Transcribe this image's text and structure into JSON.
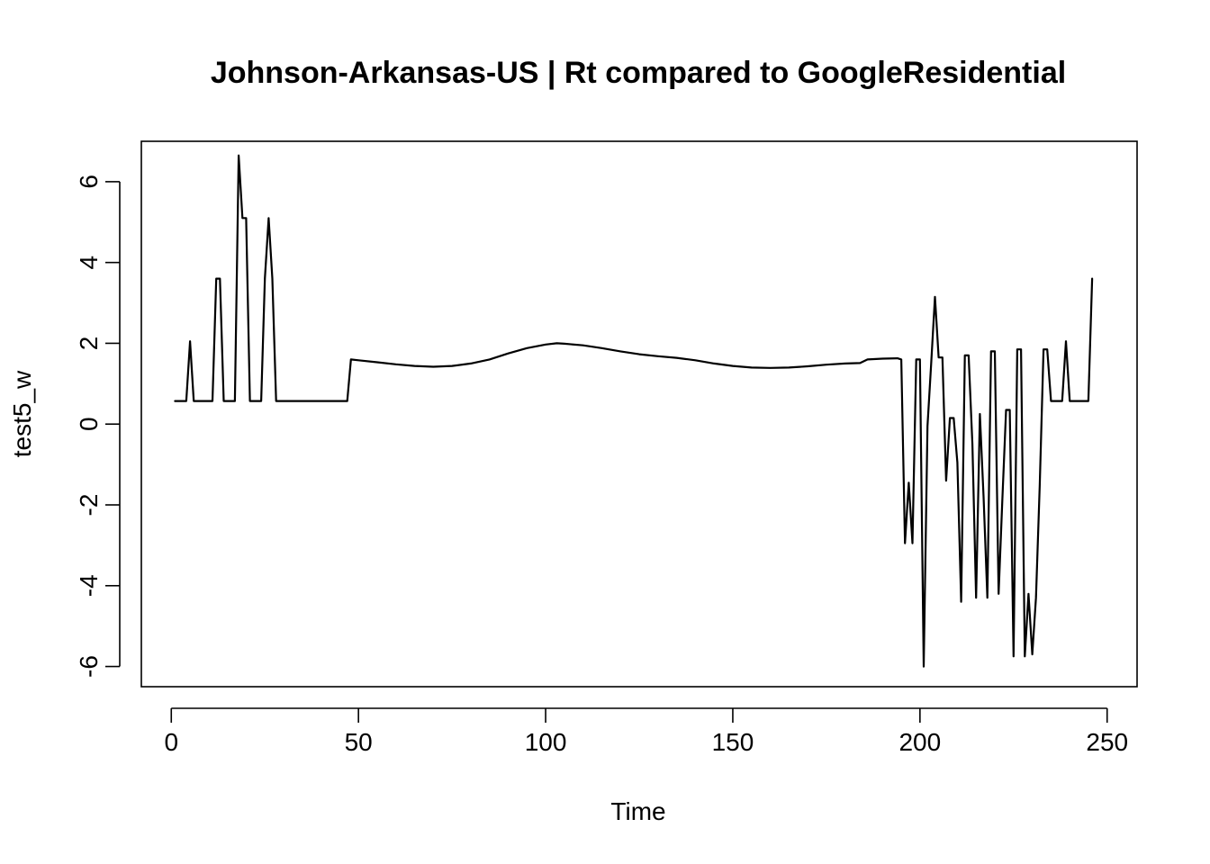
{
  "chart_data": {
    "type": "line",
    "title": "Johnson-Arkansas-US | Rt compared to GoogleResidential",
    "xlabel": "Time",
    "ylabel": "test5_w",
    "xlim": [
      -8,
      258
    ],
    "ylim": [
      -6.5,
      7.0
    ],
    "x_ticks": [
      0,
      50,
      100,
      150,
      200,
      250
    ],
    "y_ticks": [
      -6,
      -4,
      -2,
      0,
      2,
      4,
      6
    ],
    "series": [
      {
        "values": [
          [
            1,
            0.57
          ],
          [
            3,
            0.57
          ],
          [
            4,
            0.57
          ],
          [
            5,
            2.05
          ],
          [
            6,
            0.57
          ],
          [
            7,
            0.57
          ],
          [
            8,
            0.57
          ],
          [
            11,
            0.57
          ],
          [
            12,
            3.6
          ],
          [
            13,
            3.6
          ],
          [
            14,
            0.57
          ],
          [
            15,
            0.57
          ],
          [
            17,
            0.57
          ],
          [
            18,
            6.65
          ],
          [
            19,
            5.1
          ],
          [
            20,
            5.1
          ],
          [
            21,
            0.57
          ],
          [
            22,
            0.57
          ],
          [
            24,
            0.57
          ],
          [
            25,
            3.6
          ],
          [
            26,
            5.1
          ],
          [
            27,
            3.6
          ],
          [
            28,
            0.57
          ],
          [
            30,
            0.57
          ],
          [
            35,
            0.57
          ],
          [
            40,
            0.57
          ],
          [
            45,
            0.57
          ],
          [
            47,
            0.57
          ],
          [
            48,
            1.6
          ],
          [
            50,
            1.58
          ],
          [
            55,
            1.53
          ],
          [
            60,
            1.48
          ],
          [
            65,
            1.44
          ],
          [
            70,
            1.42
          ],
          [
            75,
            1.44
          ],
          [
            80,
            1.5
          ],
          [
            85,
            1.6
          ],
          [
            90,
            1.75
          ],
          [
            95,
            1.88
          ],
          [
            100,
            1.97
          ],
          [
            103,
            2.0
          ],
          [
            105,
            1.99
          ],
          [
            110,
            1.95
          ],
          [
            115,
            1.88
          ],
          [
            120,
            1.8
          ],
          [
            125,
            1.73
          ],
          [
            130,
            1.68
          ],
          [
            135,
            1.64
          ],
          [
            140,
            1.58
          ],
          [
            145,
            1.5
          ],
          [
            150,
            1.44
          ],
          [
            155,
            1.4
          ],
          [
            160,
            1.39
          ],
          [
            165,
            1.4
          ],
          [
            170,
            1.43
          ],
          [
            175,
            1.47
          ],
          [
            180,
            1.5
          ],
          [
            184,
            1.51
          ],
          [
            186,
            1.6
          ],
          [
            190,
            1.62
          ],
          [
            194,
            1.63
          ],
          [
            195,
            1.6
          ],
          [
            196,
            -2.95
          ],
          [
            197,
            -1.45
          ],
          [
            198,
            -2.95
          ],
          [
            199,
            1.6
          ],
          [
            200,
            1.6
          ],
          [
            201,
            -6.0
          ],
          [
            202,
            -0.05
          ],
          [
            203,
            1.5
          ],
          [
            204,
            3.15
          ],
          [
            205,
            1.65
          ],
          [
            206,
            1.65
          ],
          [
            207,
            -1.4
          ],
          [
            208,
            0.15
          ],
          [
            209,
            0.15
          ],
          [
            210,
            -0.95
          ],
          [
            211,
            -4.4
          ],
          [
            212,
            1.7
          ],
          [
            213,
            1.7
          ],
          [
            214,
            -0.5
          ],
          [
            215,
            -4.3
          ],
          [
            216,
            0.25
          ],
          [
            217,
            -1.8
          ],
          [
            218,
            -4.3
          ],
          [
            219,
            1.8
          ],
          [
            220,
            1.8
          ],
          [
            221,
            -4.2
          ],
          [
            222,
            -1.9
          ],
          [
            223,
            0.35
          ],
          [
            224,
            0.35
          ],
          [
            225,
            -5.75
          ],
          [
            226,
            1.85
          ],
          [
            227,
            1.85
          ],
          [
            228,
            -5.75
          ],
          [
            229,
            -4.2
          ],
          [
            230,
            -5.7
          ],
          [
            231,
            -4.3
          ],
          [
            232,
            -1.5
          ],
          [
            233,
            1.85
          ],
          [
            234,
            1.85
          ],
          [
            235,
            0.57
          ],
          [
            236,
            0.57
          ],
          [
            238,
            0.57
          ],
          [
            239,
            2.05
          ],
          [
            240,
            0.57
          ],
          [
            241,
            0.57
          ],
          [
            242,
            0.57
          ],
          [
            244,
            0.57
          ],
          [
            245,
            0.57
          ],
          [
            246,
            3.6
          ]
        ]
      }
    ]
  }
}
